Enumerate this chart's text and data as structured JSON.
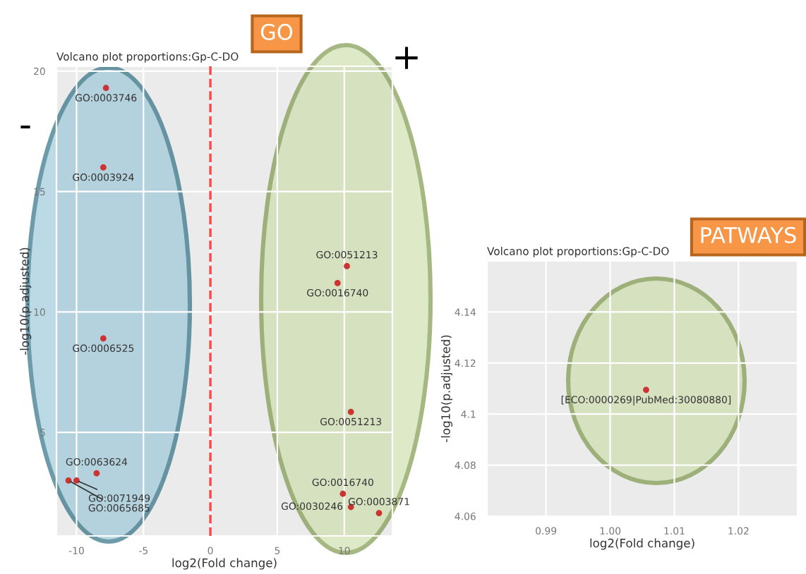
{
  "chart_data": [
    {
      "type": "scatter",
      "title": "Volcano plot proportions:Gp-C-DO",
      "xlabel": "log2(Fold change)",
      "ylabel": "-log10(p.adjusted)",
      "series": [
        {
          "color": "#cc3333",
          "x": [
            -7.8,
            -8.0,
            10.2,
            9.5,
            -8.0,
            10.5,
            -8.5,
            -10.0,
            -10.6,
            9.9,
            10.5,
            12.6
          ],
          "values": [
            19.3,
            16.0,
            11.9,
            11.2,
            8.9,
            5.85,
            3.3,
            3.0,
            3.0,
            2.45,
            1.9,
            1.65
          ]
        }
      ],
      "marker": "circle",
      "xlim": [
        -11.5,
        13.6
      ],
      "ylim": [
        0.7,
        20.2
      ],
      "xticks": [
        -10,
        -5,
        0,
        5,
        10
      ],
      "yticks": [
        5,
        10,
        15,
        20
      ],
      "grid": true,
      "legend": false,
      "ref_lines": [
        {
          "axis": "x",
          "value": 0,
          "color": "#ff4444",
          "line_style": "dashed"
        }
      ],
      "annotations": [
        {
          "text": "GO:0003746",
          "x": -7.8,
          "y": 19.3
        },
        {
          "text": "GO:0003924",
          "x": -8.0,
          "y": 16.0
        },
        {
          "text": "GO:0051213",
          "x": 10.2,
          "y": 11.9
        },
        {
          "text": "GO:0016740",
          "x": 9.5,
          "y": 11.2
        },
        {
          "text": "GO:0006525",
          "x": -8.0,
          "y": 8.9
        },
        {
          "text": "GO:0051213",
          "x": 10.5,
          "y": 5.85
        },
        {
          "text": "GO:0063624",
          "x": -8.5,
          "y": 3.3
        },
        {
          "text": "GO:0071949",
          "x": -10.0,
          "y": 3.0
        },
        {
          "text": "GO:0065685",
          "x": -10.6,
          "y": 3.0
        },
        {
          "text": "GO:0016740",
          "x": 9.9,
          "y": 2.45
        },
        {
          "text": "GO:0030246",
          "x": 10.5,
          "y": 1.9
        },
        {
          "text": "GO:0003871",
          "x": 12.6,
          "y": 1.65
        },
        "GO",
        "+",
        "-"
      ]
    },
    {
      "type": "scatter",
      "title": "Volcano plot proportions:Gp-C-DO",
      "xlabel": "log2(Fold change)",
      "ylabel": "-log10(p.adjusted)",
      "series": [
        {
          "color": "#cc3333",
          "x": [
            1.0056
          ],
          "values": [
            4.1095
          ]
        }
      ],
      "marker": "circle",
      "xlim": [
        0.9808,
        1.0292
      ],
      "ylim": [
        4.06,
        4.16
      ],
      "xticks": [
        0.99,
        {
          "value": 1.0,
          "label": "1.00"
        },
        1.01,
        1.02
      ],
      "yticks": [
        4.06,
        4.08,
        4.1,
        4.12,
        4.14
      ],
      "grid": true,
      "legend": false,
      "annotations": [
        {
          "text": "[ECO:0000269|PubMed:30080880]",
          "x": 1.0056,
          "y": 4.1095
        },
        "PATWAYS"
      ]
    }
  ]
}
